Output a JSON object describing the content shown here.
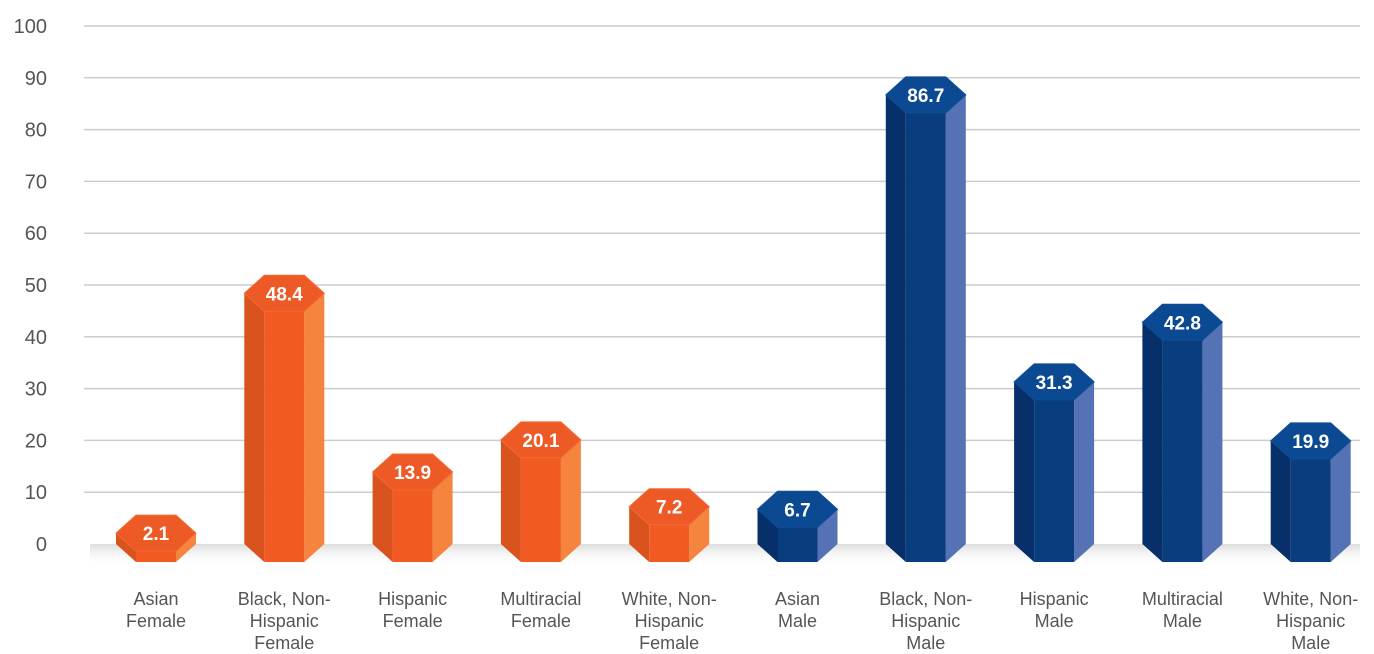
{
  "chart_data": {
    "type": "bar",
    "categories": [
      "Asian Female",
      "Black, Non-Hispanic Female",
      "Hispanic Female",
      "Multiracial Female",
      "White, Non-Hispanic Female",
      "Asian Male",
      "Black, Non-Hispanic Male",
      "Hispanic Male",
      "Multiracial Male",
      "White, Non-Hispanic Male"
    ],
    "category_lines": [
      [
        "Asian",
        "Female"
      ],
      [
        "Black, Non-",
        "Hispanic",
        "Female"
      ],
      [
        "Hispanic",
        "Female"
      ],
      [
        "Multiracial",
        "Female"
      ],
      [
        "White, Non-",
        "Hispanic",
        "Female"
      ],
      [
        "Asian",
        "Male"
      ],
      [
        "Black, Non-",
        "Hispanic",
        "Male"
      ],
      [
        "Hispanic",
        "Male"
      ],
      [
        "Multiracial",
        "Male"
      ],
      [
        "White, Non-",
        "Hispanic",
        "Male"
      ]
    ],
    "values": [
      2.1,
      48.4,
      13.9,
      20.1,
      7.2,
      6.7,
      86.7,
      31.3,
      42.8,
      19.9
    ],
    "value_labels": [
      "2.1",
      "48.4",
      "13.9",
      "20.1",
      "7.2",
      "6.7",
      "86.7",
      "31.3",
      "42.8",
      "19.9"
    ],
    "groups": [
      "female",
      "female",
      "female",
      "female",
      "female",
      "male",
      "male",
      "male",
      "male",
      "male"
    ],
    "y_ticks": [
      "0",
      "10",
      "20",
      "30",
      "40",
      "50",
      "60",
      "70",
      "80",
      "90",
      "100"
    ],
    "ylim": [
      0,
      100
    ],
    "grid": true,
    "title": "",
    "xlabel": "",
    "ylabel": ""
  },
  "colors": {
    "female": {
      "front": "#f15a22",
      "left": "#d9531f",
      "right": "#f5843f",
      "top": "#ee5a25",
      "ring": "#f26b33"
    },
    "male": {
      "front": "#0a3d7e",
      "left": "#07306a",
      "right": "#5572b5",
      "top": "#0b4a92",
      "ring": "#0e4d97"
    },
    "grid": "#cccccc",
    "text": "#555555"
  }
}
